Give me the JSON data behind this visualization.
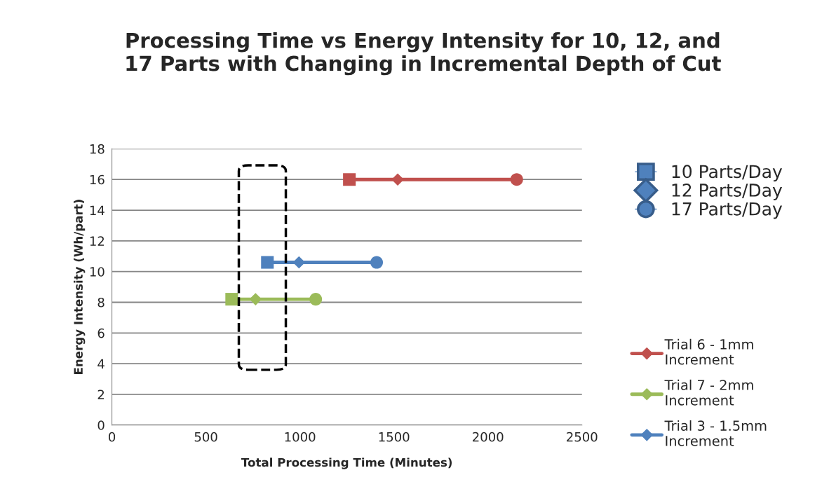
{
  "chart_data": {
    "type": "line",
    "title": "Processing Time vs Energy Intensity for 10, 12, and\n17 Parts with Changing in Incremental Depth of Cut",
    "xlabel": "Total Processing Time (Minutes)",
    "ylabel": "Energy Intensity (Wh/part)",
    "xlim": [
      0,
      2500
    ],
    "xticks": [
      0,
      500,
      1000,
      1500,
      2000,
      2500
    ],
    "ylim": [
      0,
      18
    ],
    "yticks": [
      0,
      2,
      4,
      6,
      8,
      10,
      12,
      14,
      16,
      18
    ],
    "grid": "y",
    "legend": "right",
    "series": [
      {
        "name": "Trial 6 - 1mm\nIncrement",
        "color": "#c0504d",
        "x": [
          1263,
          1520,
          2153
        ],
        "values": [
          16,
          16,
          16
        ]
      },
      {
        "name": "Trial 7 - 2mm\nIncrement",
        "color": "#9bbb59",
        "x": [
          637,
          764,
          1084
        ],
        "values": [
          8.2,
          8.2,
          8.2
        ]
      },
      {
        "name": "Trial 3 - 1.5mm\nIncrement",
        "color": "#4f81bd",
        "x": [
          827,
          995,
          1408
        ],
        "values": [
          10.6,
          10.6,
          10.6
        ]
      },
      {
        "name": "10 Parts/Day",
        "type": "scatter",
        "marker": "square",
        "color": "#4f81bd",
        "colors": [
          "#c0504d",
          "#4f81bd",
          "#9bbb59"
        ],
        "x": [
          1263,
          827,
          637
        ],
        "values": [
          16,
          10.6,
          8.2
        ]
      },
      {
        "name": "12 Parts/Day",
        "type": "scatter",
        "marker": "diamond",
        "color": "#4f81bd",
        "colors": [
          "#c0504d",
          "#4f81bd",
          "#9bbb59"
        ],
        "x": [
          1520,
          995,
          764
        ],
        "values": [
          16,
          10.6,
          8.2
        ]
      },
      {
        "name": "17 Parts/Day",
        "type": "scatter",
        "marker": "circle",
        "color": "#4f81bd",
        "colors": [
          "#c0504d",
          "#4f81bd",
          "#9bbb59"
        ],
        "x": [
          2153,
          1408,
          1084
        ],
        "values": [
          16,
          10.6,
          8.2
        ]
      }
    ]
  }
}
